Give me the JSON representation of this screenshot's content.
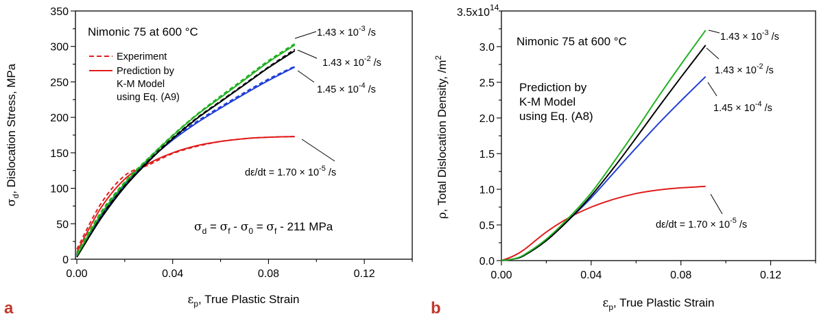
{
  "chart_data": [
    {
      "type": "line",
      "panel_label": "a",
      "title": "Nimonic 75 at 600 °C",
      "xlabel": "εp, True Plastic Strain",
      "ylabel": "σd, Dislocation Stress, MPa",
      "xlim": [
        0,
        0.14
      ],
      "ylim": [
        0,
        350
      ],
      "xticks": [
        "0.00",
        "0.04",
        "0.08",
        "0.12"
      ],
      "yticks": [
        "0",
        "50",
        "100",
        "150",
        "200",
        "250",
        "300",
        "350"
      ],
      "legend": {
        "experiment": "Experiment",
        "prediction_lines": [
          "Prediction by",
          "K-M Model",
          "using Eq. (A9)"
        ]
      },
      "equation": {
        "main": "σd = σf - σ0 = σf - 211 MPa"
      },
      "colors": {
        "green": "#22b022",
        "black": "#000000",
        "blue": "#1f3ed6",
        "red": "#e01b1b"
      },
      "rate_labels": {
        "prefix": "dε/dt = ",
        "times": "×",
        "unit": "/s"
      },
      "series": [
        {
          "name": "1.43 × 10-3 /s",
          "mantissa": "1.43",
          "exponent": "-3",
          "color": "#22b022",
          "x": [
            0,
            0.01,
            0.02,
            0.03,
            0.04,
            0.05,
            0.06,
            0.07,
            0.08,
            0.091
          ],
          "prediction": [
            5,
            63,
            107,
            142,
            174,
            203,
            228,
            253,
            278,
            302
          ],
          "experiment": [
            8,
            66,
            109,
            143,
            175,
            204,
            230,
            255,
            280,
            304
          ]
        },
        {
          "name": "1.43 × 10-2 /s",
          "mantissa": "1.43",
          "exponent": "-2",
          "color": "#000000",
          "x": [
            0,
            0.01,
            0.02,
            0.03,
            0.04,
            0.05,
            0.06,
            0.07,
            0.08,
            0.091
          ],
          "prediction": [
            3,
            57,
            102,
            138,
            170,
            198,
            222,
            246,
            270,
            294
          ],
          "experiment": [
            6,
            60,
            104,
            140,
            171,
            199,
            223,
            247,
            271,
            296
          ]
        },
        {
          "name": "1.45 × 10-4 /s",
          "mantissa": "1.45",
          "exponent": "-4",
          "color": "#1f3ed6",
          "x": [
            0,
            0.01,
            0.02,
            0.03,
            0.04,
            0.05,
            0.06,
            0.07,
            0.08,
            0.091
          ],
          "prediction": [
            4,
            60,
            104,
            139,
            168,
            192,
            213,
            233,
            252,
            271
          ],
          "experiment": [
            7,
            63,
            107,
            141,
            170,
            194,
            215,
            235,
            254,
            272
          ]
        },
        {
          "name": "dε/dt = 1.70 × 10-5 /s",
          "mantissa": "1.70",
          "exponent": "-5",
          "color": "#e01b1b",
          "x": [
            0,
            0.01,
            0.02,
            0.03,
            0.04,
            0.05,
            0.06,
            0.07,
            0.08,
            0.091
          ],
          "prediction": [
            10,
            72,
            113,
            135,
            150,
            160,
            166,
            170,
            172,
            173
          ],
          "experiment": [
            14,
            78,
            118,
            133,
            149,
            159,
            166,
            170,
            172,
            173
          ]
        }
      ]
    },
    {
      "type": "line",
      "panel_label": "b",
      "title": "Nimonic 75 at 600 °C",
      "xlabel": "εp, True Plastic Strain",
      "ylabel": "ρ, Total Dislocation Density, /m2",
      "xlim": [
        0,
        0.14
      ],
      "ylim": [
        0,
        350000000000000.0
      ],
      "xticks": [
        "0.00",
        "0.04",
        "0.08",
        "0.12"
      ],
      "yticks": [
        "0.0",
        "0.5",
        "1.0",
        "1.5",
        "2.0",
        "2.5",
        "3.0"
      ],
      "y_top_label": {
        "mantissa": "3.5x10",
        "exponent": "14"
      },
      "legend": {
        "prediction_lines": [
          "Prediction by",
          "K-M Model",
          "using Eq. (A8)"
        ]
      },
      "rate_labels": {
        "prefix": "dε/dt = ",
        "times": "×",
        "unit": "/s"
      },
      "series": [
        {
          "name": "1.43 × 10-3 /s",
          "mantissa": "1.43",
          "exponent": "-3",
          "color": "#22b022",
          "x": [
            0,
            0.005,
            0.01,
            0.02,
            0.03,
            0.04,
            0.05,
            0.06,
            0.07,
            0.08,
            0.091
          ],
          "values": [
            0,
            2000000000000.0,
            8000000000000.0,
            30000000000000.0,
            60000000000000.0,
            95000000000000.0,
            138000000000000.0,
            183000000000000.0,
            230000000000000.0,
            275000000000000.0,
            323000000000000.0
          ]
        },
        {
          "name": "1.43 × 10-2 /s",
          "mantissa": "1.43",
          "exponent": "-2",
          "color": "#000000",
          "x": [
            0,
            0.005,
            0.01,
            0.02,
            0.03,
            0.04,
            0.05,
            0.06,
            0.07,
            0.08,
            0.091
          ],
          "values": [
            0,
            2000000000000.0,
            7000000000000.0,
            28000000000000.0,
            57000000000000.0,
            91000000000000.0,
            130000000000000.0,
            172000000000000.0,
            215000000000000.0,
            257000000000000.0,
            302000000000000.0
          ]
        },
        {
          "name": "1.45 × 10-4 /s",
          "mantissa": "1.45",
          "exponent": "-4",
          "color": "#1f3ed6",
          "x": [
            0,
            0.005,
            0.01,
            0.02,
            0.03,
            0.04,
            0.05,
            0.06,
            0.07,
            0.08,
            0.091
          ],
          "values": [
            0,
            2000000000000.0,
            7000000000000.0,
            28000000000000.0,
            57000000000000.0,
            88000000000000.0,
            123000000000000.0,
            158000000000000.0,
            192000000000000.0,
            224000000000000.0,
            258000000000000.0
          ]
        },
        {
          "name": "dε/dt = 1.70 × 10-5 /s",
          "mantissa": "1.70",
          "exponent": "-5",
          "color": "#e01b1b",
          "x": [
            0,
            0.005,
            0.01,
            0.02,
            0.03,
            0.04,
            0.05,
            0.06,
            0.07,
            0.08,
            0.091
          ],
          "values": [
            0,
            6000000000000.0,
            15000000000000.0,
            40000000000000.0,
            60000000000000.0,
            75000000000000.0,
            86000000000000.0,
            94000000000000.0,
            99000000000000.0,
            102000000000000.0,
            104000000000000.0
          ]
        }
      ]
    }
  ]
}
